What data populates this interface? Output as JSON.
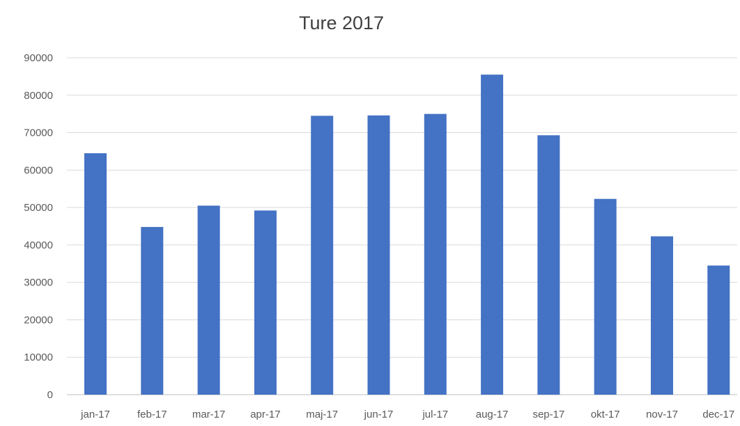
{
  "chart_data": {
    "type": "bar",
    "title": "Ture 2017",
    "xlabel": "",
    "ylabel": "",
    "categories": [
      "jan-17",
      "feb-17",
      "mar-17",
      "apr-17",
      "maj-17",
      "jun-17",
      "jul-17",
      "aug-17",
      "sep-17",
      "okt-17",
      "nov-17",
      "dec-17"
    ],
    "values": [
      64500,
      44800,
      50500,
      49200,
      74500,
      74600,
      75000,
      85500,
      69300,
      52300,
      42300,
      34500
    ],
    "ylim": [
      0,
      90000
    ],
    "yticks": [
      "0",
      "10000",
      "20000",
      "30000",
      "40000",
      "50000",
      "60000",
      "70000",
      "80000",
      "90000"
    ],
    "grid": true,
    "legend": "none",
    "bar_color": "#4472c4"
  }
}
